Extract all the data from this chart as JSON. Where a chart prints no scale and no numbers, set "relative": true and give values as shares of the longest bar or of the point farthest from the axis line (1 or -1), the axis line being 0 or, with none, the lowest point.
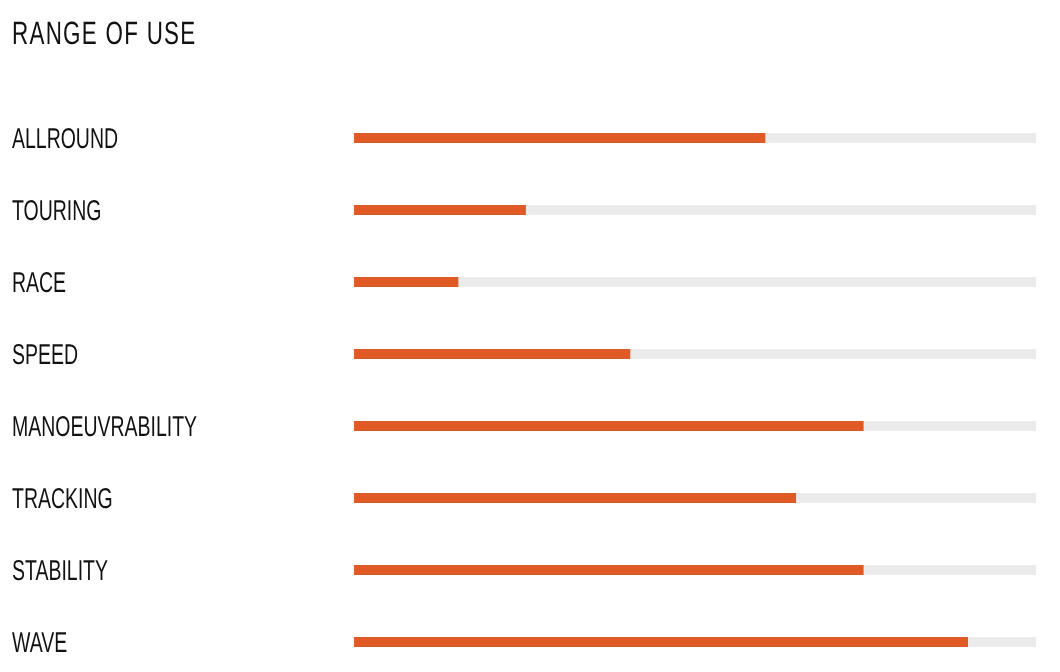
{
  "chart_data": {
    "type": "bar",
    "orientation": "horizontal",
    "relative": true,
    "title": "RANGE OF USE",
    "categories": [
      "ALLROUND",
      "TOURING",
      "RACE",
      "SPEED",
      "MANOEUVRABILITY",
      "TRACKING",
      "STABILITY",
      "WAVE"
    ],
    "values": [
      0.67,
      0.28,
      0.17,
      0.45,
      0.83,
      0.72,
      0.83,
      1
    ],
    "color": "#e05a26"
  }
}
